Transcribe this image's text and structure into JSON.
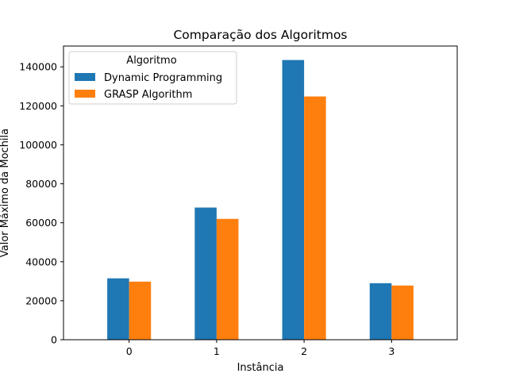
{
  "chart_data": {
    "type": "bar",
    "title": "Comparação dos Algoritmos",
    "xlabel": "Instância",
    "ylabel": "Valor Máximo da Mochila",
    "categories": [
      "0",
      "1",
      "2",
      "3"
    ],
    "series": [
      {
        "name": "Dynamic Programming",
        "color": "#1f77b4",
        "values": [
          31500,
          67800,
          143500,
          29000
        ]
      },
      {
        "name": "GRASP Algorithm",
        "color": "#ff7f0e",
        "values": [
          29800,
          62000,
          124800,
          27800
        ]
      }
    ],
    "ylim": [
      0,
      150675
    ],
    "yticks": [
      0,
      20000,
      40000,
      60000,
      80000,
      100000,
      120000,
      140000
    ],
    "grid": false,
    "legend": {
      "title": "Algoritmo",
      "placement": "top-left"
    }
  }
}
